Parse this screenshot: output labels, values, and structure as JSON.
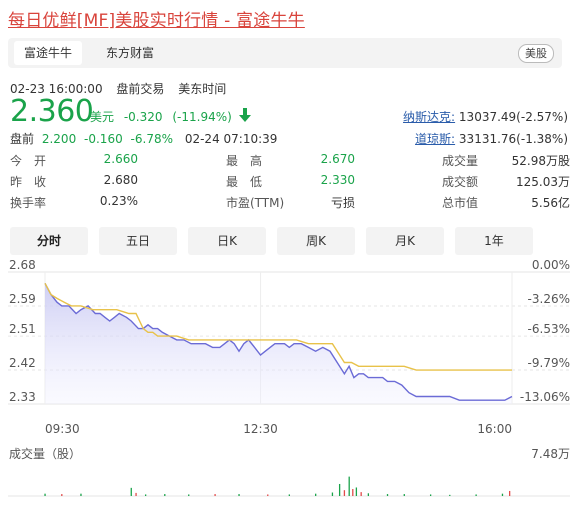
{
  "title": "每日优鲜[MF]美股实时行情 - 富途牛牛",
  "tabs": [
    {
      "label": "富途牛牛",
      "active": true
    },
    {
      "label": "东方财富",
      "active": false
    }
  ],
  "market_badge": "美股",
  "meta": {
    "datetime": "02-23 16:00:00",
    "session": "盘前交易",
    "timezone": "美东时间"
  },
  "quote": {
    "price": "2.360",
    "currency": "美元",
    "change": "-0.320",
    "change_pct": "(-11.94%)",
    "color_down": "#1aa34a"
  },
  "premarket": {
    "label": "盘前",
    "price": "2.200",
    "change": "-0.160",
    "change_pct": "-6.78%",
    "time": "02-24 07:10:39"
  },
  "indices": [
    {
      "name": "纳斯达克:",
      "value": "13037.49(-2.57%)"
    },
    {
      "name": "道琼斯:",
      "value": "33131.76(-1.38%)"
    }
  ],
  "stats": [
    [
      {
        "label": "今　开",
        "value": "2.660",
        "color": "green"
      },
      {
        "label": "最　高",
        "value": "2.670",
        "color": "green"
      },
      {
        "label": "成交量",
        "value": "52.98万股",
        "color": "normal"
      }
    ],
    [
      {
        "label": "昨　收",
        "value": "2.680",
        "color": "normal"
      },
      {
        "label": "最　低",
        "value": "2.330",
        "color": "green"
      },
      {
        "label": "成交额",
        "value": "125.03万",
        "color": "normal"
      }
    ],
    [
      {
        "label": "换手率",
        "value": "0.23%",
        "color": "normal"
      },
      {
        "label": "市盈(TTM)",
        "value": "亏损",
        "color": "normal"
      },
      {
        "label": "总市值",
        "value": "5.56亿",
        "color": "normal"
      }
    ]
  ],
  "periods": [
    {
      "label": "分时",
      "active": true
    },
    {
      "label": "五日",
      "active": false
    },
    {
      "label": "日K",
      "active": false
    },
    {
      "label": "周K",
      "active": false
    },
    {
      "label": "月K",
      "active": false
    },
    {
      "label": "1年",
      "active": false
    }
  ],
  "chart_data": {
    "type": "line",
    "title": "",
    "xlabel": "",
    "ylabel": "",
    "x_ticks": [
      "09:30",
      "12:30",
      "16:00"
    ],
    "x_range": [
      0,
      390
    ],
    "ylim": [
      2.33,
      2.68
    ],
    "y_ticks": [
      "2.68",
      "2.59",
      "2.51",
      "2.42",
      "2.33"
    ],
    "y_tick_values": [
      2.68,
      2.59,
      2.51,
      2.42,
      2.33
    ],
    "pct_ticks": [
      "0.00%",
      "-3.26%",
      "-6.53%",
      "-9.79%",
      "-13.06%"
    ],
    "grid": true,
    "series": [
      {
        "name": "",
        "color": "#6b6bd6",
        "x": [
          0,
          5,
          10,
          14,
          20,
          26,
          30,
          36,
          42,
          46,
          50,
          54,
          58,
          62,
          68,
          72,
          78,
          82,
          86,
          90,
          94,
          98,
          104,
          110,
          116,
          122,
          128,
          134,
          140,
          146,
          150,
          154,
          158,
          162,
          166,
          170,
          175,
          180,
          184,
          188,
          192,
          196,
          200,
          204,
          208,
          214,
          220,
          226,
          232,
          238,
          244,
          250,
          254,
          258,
          262,
          266,
          270,
          274,
          278,
          282,
          286,
          292,
          298,
          304,
          310,
          316,
          322,
          330,
          338,
          346,
          354,
          360,
          366,
          372,
          378,
          384,
          390
        ],
        "y": [
          2.65,
          2.62,
          2.6,
          2.59,
          2.59,
          2.57,
          2.58,
          2.59,
          2.57,
          2.57,
          2.56,
          2.55,
          2.56,
          2.57,
          2.56,
          2.55,
          2.53,
          2.53,
          2.54,
          2.53,
          2.53,
          2.52,
          2.51,
          2.5,
          2.5,
          2.49,
          2.49,
          2.49,
          2.48,
          2.48,
          2.49,
          2.5,
          2.49,
          2.47,
          2.49,
          2.5,
          2.48,
          2.46,
          2.47,
          2.48,
          2.49,
          2.49,
          2.49,
          2.48,
          2.49,
          2.49,
          2.48,
          2.47,
          2.48,
          2.47,
          2.44,
          2.41,
          2.43,
          2.4,
          2.41,
          2.41,
          2.4,
          2.4,
          2.4,
          2.4,
          2.39,
          2.39,
          2.38,
          2.36,
          2.35,
          2.35,
          2.35,
          2.35,
          2.35,
          2.34,
          2.34,
          2.34,
          2.34,
          2.34,
          2.34,
          2.34,
          2.35
        ]
      },
      {
        "name": "",
        "color": "#e8c24a",
        "x": [
          0,
          5,
          10,
          16,
          22,
          30,
          40,
          50,
          60,
          70,
          76,
          82,
          86,
          90,
          94,
          100,
          110,
          120,
          130,
          140,
          150,
          160,
          170,
          180,
          190,
          200,
          210,
          220,
          230,
          240,
          246,
          250,
          256,
          262,
          270,
          280,
          290,
          300,
          310,
          320,
          330,
          340,
          350,
          360,
          370,
          380,
          390
        ],
        "y": [
          2.65,
          2.62,
          2.61,
          2.6,
          2.59,
          2.59,
          2.58,
          2.58,
          2.58,
          2.57,
          2.57,
          2.53,
          2.52,
          2.52,
          2.51,
          2.51,
          2.51,
          2.5,
          2.5,
          2.5,
          2.5,
          2.5,
          2.5,
          2.5,
          2.5,
          2.5,
          2.5,
          2.49,
          2.49,
          2.49,
          2.46,
          2.44,
          2.44,
          2.43,
          2.43,
          2.43,
          2.43,
          2.43,
          2.42,
          2.42,
          2.42,
          2.42,
          2.42,
          2.42,
          2.42,
          2.42,
          2.42
        ]
      }
    ],
    "volume": {
      "label": "成交量（股）",
      "max_label": "7.48万",
      "max": 7.48,
      "bars": [
        {
          "x": 0,
          "v": 0.6,
          "c": "green"
        },
        {
          "x": 14,
          "v": 0.5,
          "c": "red"
        },
        {
          "x": 30,
          "v": 0.6,
          "c": "green"
        },
        {
          "x": 72,
          "v": 2.1,
          "c": "green"
        },
        {
          "x": 76,
          "v": 0.8,
          "c": "red"
        },
        {
          "x": 84,
          "v": 0.4,
          "c": "green"
        },
        {
          "x": 100,
          "v": 0.5,
          "c": "green"
        },
        {
          "x": 120,
          "v": 0.4,
          "c": "green"
        },
        {
          "x": 142,
          "v": 0.5,
          "c": "red"
        },
        {
          "x": 162,
          "v": 0.5,
          "c": "green"
        },
        {
          "x": 186,
          "v": 0.4,
          "c": "red"
        },
        {
          "x": 204,
          "v": 0.4,
          "c": "green"
        },
        {
          "x": 226,
          "v": 0.6,
          "c": "green"
        },
        {
          "x": 240,
          "v": 0.9,
          "c": "green"
        },
        {
          "x": 246,
          "v": 3.1,
          "c": "green"
        },
        {
          "x": 250,
          "v": 1.5,
          "c": "red"
        },
        {
          "x": 254,
          "v": 5.0,
          "c": "green"
        },
        {
          "x": 257,
          "v": 1.8,
          "c": "red"
        },
        {
          "x": 260,
          "v": 2.2,
          "c": "green"
        },
        {
          "x": 264,
          "v": 1.0,
          "c": "red"
        },
        {
          "x": 270,
          "v": 0.7,
          "c": "green"
        },
        {
          "x": 286,
          "v": 0.5,
          "c": "green"
        },
        {
          "x": 300,
          "v": 0.5,
          "c": "green"
        },
        {
          "x": 322,
          "v": 0.4,
          "c": "green"
        },
        {
          "x": 338,
          "v": 0.3,
          "c": "green"
        },
        {
          "x": 360,
          "v": 0.4,
          "c": "green"
        },
        {
          "x": 382,
          "v": 0.6,
          "c": "green"
        },
        {
          "x": 388,
          "v": 1.3,
          "c": "red"
        }
      ]
    }
  }
}
